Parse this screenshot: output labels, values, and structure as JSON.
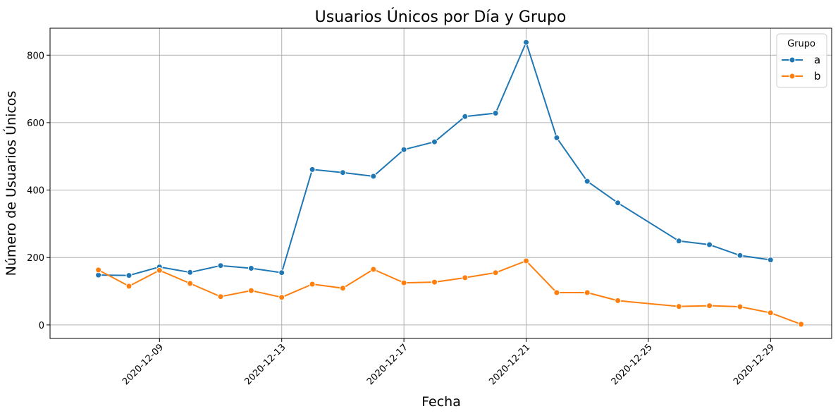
{
  "chart_data": {
    "type": "line",
    "title": "Usuarios Únicos por Día y Grupo",
    "xlabel": "Fecha",
    "ylabel": "Número de Usuarios Únicos",
    "x_ticks": [
      "2020-12-09",
      "2020-12-13",
      "2020-12-17",
      "2020-12-21",
      "2020-12-25",
      "2020-12-29"
    ],
    "y_ticks": [
      0,
      200,
      400,
      600,
      800
    ],
    "ylim": [
      -40,
      880
    ],
    "xlim": [
      "2020-12-05 10:00",
      "2020-12-31 00:00"
    ],
    "grid": true,
    "legend": {
      "title": "Grupo",
      "position": "top-right"
    },
    "series": [
      {
        "name": "a",
        "color": "#1f77b4",
        "points": [
          [
            "2020-12-07",
            148
          ],
          [
            "2020-12-08",
            147
          ],
          [
            "2020-12-09",
            172
          ],
          [
            "2020-12-10",
            156
          ],
          [
            "2020-12-11",
            176
          ],
          [
            "2020-12-12",
            168
          ],
          [
            "2020-12-13",
            155
          ],
          [
            "2020-12-14",
            461
          ],
          [
            "2020-12-15",
            452
          ],
          [
            "2020-12-16",
            441
          ],
          [
            "2020-12-17",
            520
          ],
          [
            "2020-12-18",
            543
          ],
          [
            "2020-12-19",
            618
          ],
          [
            "2020-12-20",
            628
          ],
          [
            "2020-12-21",
            838
          ],
          [
            "2020-12-22",
            555
          ],
          [
            "2020-12-23",
            426
          ],
          [
            "2020-12-24",
            362
          ],
          [
            "2020-12-26",
            249
          ],
          [
            "2020-12-27",
            238
          ],
          [
            "2020-12-28",
            206
          ],
          [
            "2020-12-29",
            193
          ]
        ]
      },
      {
        "name": "b",
        "color": "#ff7f0e",
        "points": [
          [
            "2020-12-07",
            163
          ],
          [
            "2020-12-08",
            115
          ],
          [
            "2020-12-09",
            162
          ],
          [
            "2020-12-10",
            123
          ],
          [
            "2020-12-11",
            84
          ],
          [
            "2020-12-12",
            102
          ],
          [
            "2020-12-13",
            82
          ],
          [
            "2020-12-14",
            121
          ],
          [
            "2020-12-15",
            109
          ],
          [
            "2020-12-16",
            165
          ],
          [
            "2020-12-17",
            125
          ],
          [
            "2020-12-18",
            127
          ],
          [
            "2020-12-19",
            140
          ],
          [
            "2020-12-20",
            155
          ],
          [
            "2020-12-21",
            190
          ],
          [
            "2020-12-22",
            96
          ],
          [
            "2020-12-23",
            96
          ],
          [
            "2020-12-24",
            72
          ],
          [
            "2020-12-26",
            55
          ],
          [
            "2020-12-27",
            57
          ],
          [
            "2020-12-28",
            54
          ],
          [
            "2020-12-29",
            36
          ],
          [
            "2020-12-30",
            2
          ]
        ]
      }
    ]
  }
}
